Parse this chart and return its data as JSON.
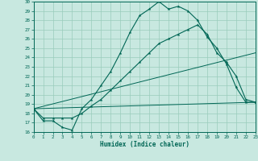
{
  "xlabel": "Humidex (Indice chaleur)",
  "xlim": [
    0,
    23
  ],
  "ylim": [
    16,
    30
  ],
  "xticks": [
    0,
    1,
    2,
    3,
    4,
    5,
    6,
    7,
    8,
    9,
    10,
    11,
    12,
    13,
    14,
    15,
    16,
    17,
    18,
    19,
    20,
    21,
    22,
    23
  ],
  "yticks": [
    16,
    17,
    18,
    19,
    20,
    21,
    22,
    23,
    24,
    25,
    26,
    27,
    28,
    29,
    30
  ],
  "bg_color": "#c8e8e0",
  "line_color": "#006655",
  "grid_color": "#99ccbb",
  "line1_x": [
    0,
    1,
    2,
    3,
    4,
    5,
    6,
    7,
    8,
    9,
    10,
    11,
    12,
    13,
    14,
    15,
    16,
    17,
    18,
    19,
    20,
    21,
    22,
    23
  ],
  "line1_y": [
    18.5,
    17.2,
    17.2,
    16.5,
    16.2,
    18.5,
    19.5,
    21.0,
    22.5,
    24.5,
    26.7,
    28.5,
    29.2,
    30.0,
    29.2,
    29.5,
    29.0,
    28.0,
    26.2,
    25.0,
    23.3,
    20.8,
    19.2,
    19.2
  ],
  "line2_x": [
    0,
    1,
    2,
    3,
    4,
    5,
    6,
    7,
    8,
    9,
    10,
    11,
    12,
    13,
    14,
    15,
    16,
    17,
    18,
    19,
    20,
    21,
    22,
    23
  ],
  "line2_y": [
    18.5,
    17.5,
    17.5,
    17.5,
    17.5,
    18.0,
    18.8,
    19.5,
    20.5,
    21.5,
    22.5,
    23.5,
    24.5,
    25.5,
    26.0,
    26.5,
    27.0,
    27.5,
    26.5,
    24.5,
    23.5,
    22.0,
    19.5,
    19.2
  ],
  "line3_x": [
    0,
    23
  ],
  "line3_y": [
    18.5,
    19.2
  ],
  "line4_x": [
    0,
    23
  ],
  "line4_y": [
    18.5,
    24.5
  ]
}
